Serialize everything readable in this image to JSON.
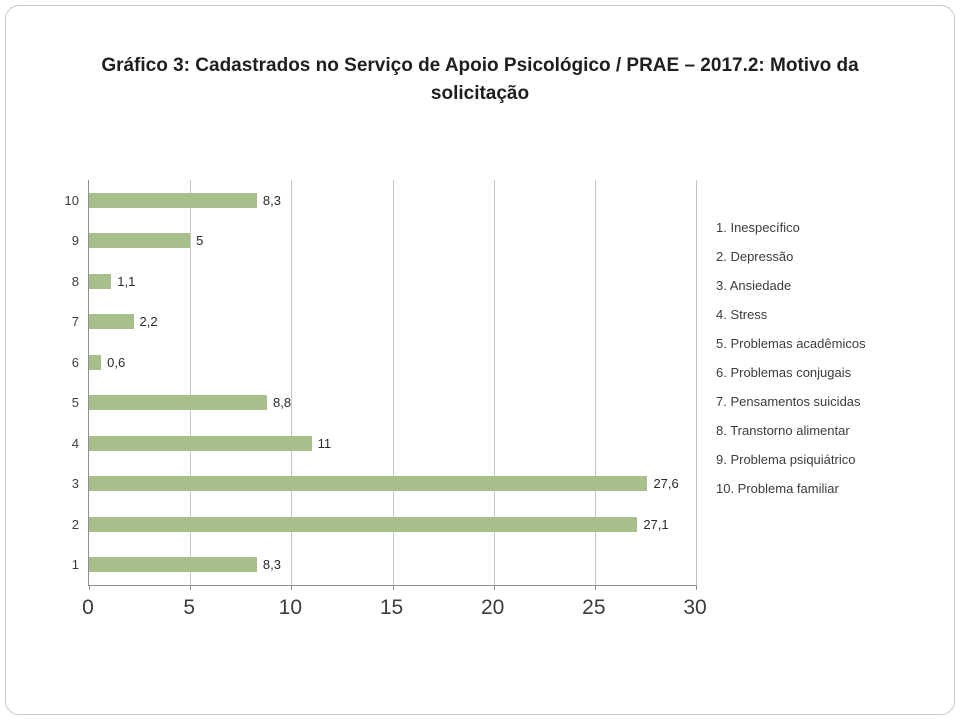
{
  "chart_data": {
    "type": "bar",
    "orientation": "horizontal",
    "title": "Gráfico 3: Cadastrados no Serviço de Apoio Psicológico / PRAE – 2017.2: Motivo da solicitação",
    "categories": [
      "1",
      "2",
      "3",
      "4",
      "5",
      "6",
      "7",
      "8",
      "9",
      "10"
    ],
    "values": [
      8.3,
      27.1,
      27.6,
      11,
      8.8,
      0.6,
      2.2,
      1.1,
      5,
      8.3
    ],
    "value_labels": [
      "8,3",
      "27,1",
      "27,6",
      "11",
      "8,8",
      "0,6",
      "2,2",
      "1,1",
      "5",
      "8,3"
    ],
    "xlim": [
      0,
      30
    ],
    "xticks": [
      0,
      5,
      10,
      15,
      20,
      25,
      30
    ],
    "grid": true,
    "bar_color": "#a6bf8b",
    "legend_position": "right",
    "legend": [
      "1. Inespecífico",
      "2. Depressão",
      "3. Ansiedade",
      "4. Stress",
      "5. Problemas acadêmicos",
      "6. Problemas conjugais",
      "7. Pensamentos suicidas",
      "8. Transtorno alimentar",
      "9. Problema psiquiátrico",
      "10. Problema familiar"
    ]
  }
}
